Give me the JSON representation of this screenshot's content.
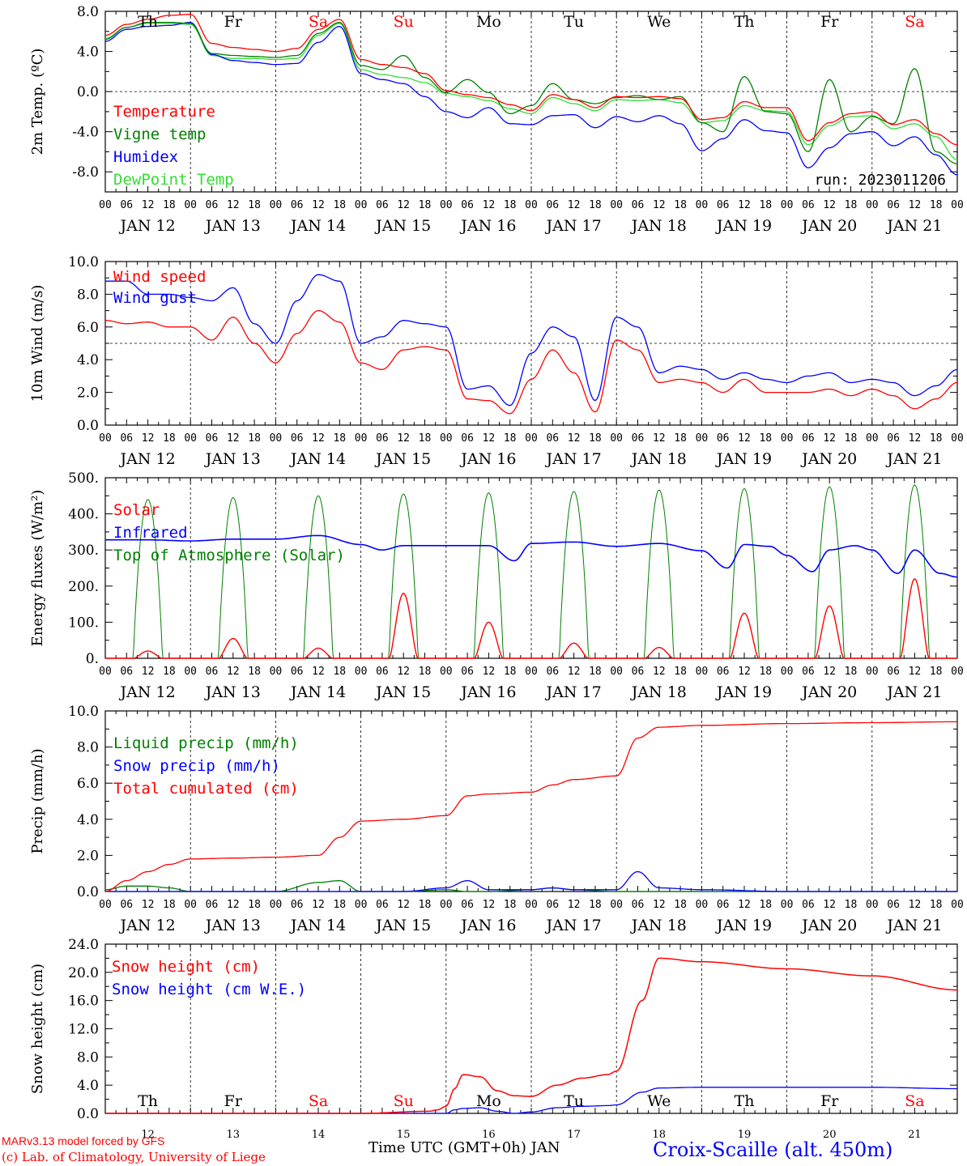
{
  "page": {
    "run_label": "run: 2023011206",
    "hour_labels": [
      "00",
      "06",
      "12",
      "18"
    ],
    "date_labels": [
      "JAN 12",
      "JAN 13",
      "JAN 14",
      "JAN 15",
      "JAN 16",
      "JAN 17",
      "JAN 18",
      "JAN 19",
      "JAN 20",
      "JAN 21"
    ],
    "last_hour_label": "00",
    "day_names": [
      "Th",
      "Fr",
      "Sa",
      "Su",
      "Mo",
      "Tu",
      "We",
      "Th",
      "Fr",
      "Sa"
    ],
    "day_colors": [
      "#000000",
      "#000000",
      "#ff0000",
      "#ff0000",
      "#000000",
      "#000000",
      "#000000",
      "#000000",
      "#000000",
      "#ff0000"
    ],
    "bottom_day_numbers": [
      "12",
      "13",
      "14",
      "15",
      "16",
      "17",
      "18",
      "19",
      "20",
      "21"
    ],
    "footer_model": "MARv3.13 model forced by GFS",
    "footer_lab": "(c) Lab. of Climatology, University of Liege",
    "footer_axis": "Time UTC (GMT+0h) JAN",
    "footer_station": "Croix-Scaille (alt. 450m)",
    "colors": {
      "red": "#ff0000",
      "green": "#008000",
      "blue": "#0000ff",
      "lightgreen": "#33dd33"
    }
  },
  "chart_data": [
    {
      "type": "line",
      "ylabel": "2m Temp. (ºC)",
      "ylim": [
        -10,
        8
      ],
      "yticks": [
        8,
        4,
        0,
        -4,
        -8
      ],
      "ytick_labels": [
        "8.0",
        "4.0",
        "0.0",
        "-4.0",
        "-8.0"
      ],
      "ref_line": 0,
      "x_unit": "days since JAN 12 00 UTC",
      "x": [
        0,
        0.25,
        0.5,
        0.75,
        1,
        1.25,
        1.5,
        1.75,
        2,
        2.25,
        2.5,
        2.75,
        3,
        3.25,
        3.5,
        3.75,
        4,
        4.25,
        4.5,
        4.75,
        5,
        5.25,
        5.5,
        5.75,
        6,
        6.25,
        6.5,
        6.75,
        7,
        7.25,
        7.5,
        7.75,
        8,
        8.25,
        8.5,
        8.75,
        9,
        9.25,
        9.5,
        9.75,
        10
      ],
      "series": [
        {
          "name": "Temperature",
          "color": "#ff0000",
          "values": [
            5.6,
            6.7,
            7.2,
            7.6,
            7.7,
            4.8,
            4.4,
            4.2,
            4.0,
            4.3,
            6.2,
            7.2,
            3.2,
            2.7,
            2.4,
            1.8,
            0.1,
            -0.3,
            -0.6,
            -1.3,
            -1.9,
            -0.3,
            -0.8,
            -1.6,
            -0.5,
            -0.6,
            -0.5,
            -0.7,
            -2.8,
            -2.6,
            -1.0,
            -1.6,
            -1.6,
            -4.9,
            -3.1,
            -2.2,
            -2.0,
            -3.3,
            -2.8,
            -4.2,
            -5.3
          ]
        },
        {
          "name": "Vigne temp",
          "color": "#008000",
          "values": [
            5.2,
            6.4,
            6.9,
            6.9,
            6.8,
            3.8,
            3.6,
            3.5,
            3.4,
            3.6,
            5.8,
            6.9,
            2.6,
            2.2,
            3.6,
            1.4,
            -0.1,
            1.2,
            -0.1,
            -2.2,
            -1.4,
            0.8,
            -0.8,
            -1.2,
            -0.6,
            -0.4,
            -0.8,
            -0.5,
            -3.1,
            -4.0,
            1.5,
            -2.0,
            -2.2,
            -6.0,
            1.2,
            -4.0,
            -2.5,
            -3.2,
            2.3,
            -6.0,
            -7.2
          ]
        },
        {
          "name": "Humidex",
          "color": "#0000ff",
          "values": [
            5.0,
            6.2,
            6.5,
            6.6,
            6.9,
            3.7,
            3.1,
            2.9,
            2.7,
            2.8,
            4.9,
            6.5,
            1.8,
            1.2,
            0.8,
            -0.5,
            -2.0,
            -2.6,
            -1.6,
            -3.2,
            -3.3,
            -2.4,
            -2.3,
            -3.6,
            -2.5,
            -3.0,
            -2.4,
            -3.2,
            -5.9,
            -4.7,
            -2.8,
            -3.9,
            -4.1,
            -7.6,
            -5.6,
            -4.2,
            -4.0,
            -5.4,
            -4.5,
            -6.3,
            -8.3
          ]
        },
        {
          "name": "DewPoint Temp",
          "color": "#33dd33",
          "values": [
            5.3,
            6.4,
            6.8,
            6.8,
            6.7,
            3.6,
            3.3,
            3.3,
            3.2,
            3.3,
            5.6,
            6.8,
            2.2,
            1.7,
            1.4,
            0.9,
            -0.2,
            -0.5,
            -0.9,
            -1.7,
            -2.2,
            -0.6,
            -1.2,
            -1.9,
            -0.8,
            -0.9,
            -0.8,
            -1.1,
            -3.1,
            -2.9,
            -1.4,
            -1.9,
            -2.0,
            -5.3,
            -3.4,
            -2.5,
            -2.4,
            -3.7,
            -3.2,
            -4.5,
            -6.8
          ]
        }
      ]
    },
    {
      "type": "line",
      "ylabel": "10m Wind (m/s)",
      "ylim": [
        0,
        10
      ],
      "yticks": [
        10,
        8,
        6,
        4,
        2,
        0
      ],
      "ytick_labels": [
        "10.0",
        "8.0",
        "6.0",
        "4.0",
        "2.0",
        "0.0"
      ],
      "ref_line": 5,
      "x_unit": "days since JAN 12 00 UTC",
      "x": [
        0,
        0.25,
        0.5,
        0.75,
        1,
        1.25,
        1.5,
        1.75,
        2,
        2.25,
        2.5,
        2.75,
        3,
        3.25,
        3.5,
        3.75,
        4,
        4.25,
        4.5,
        4.75,
        5,
        5.25,
        5.5,
        5.75,
        6,
        6.25,
        6.5,
        6.75,
        7,
        7.25,
        7.5,
        7.75,
        8,
        8.25,
        8.5,
        8.75,
        9,
        9.25,
        9.5,
        9.75,
        10
      ],
      "series": [
        {
          "name": "Wind speed",
          "color": "#ff0000",
          "values": [
            6.4,
            6.2,
            6.3,
            6.0,
            6.0,
            5.2,
            6.6,
            5.0,
            3.8,
            5.6,
            7.0,
            6.3,
            3.8,
            3.4,
            4.6,
            4.8,
            4.6,
            1.6,
            1.5,
            0.7,
            2.8,
            4.6,
            3.2,
            0.8,
            5.2,
            4.6,
            2.6,
            2.8,
            2.6,
            2.0,
            2.8,
            2.0,
            2.0,
            2.0,
            2.2,
            1.8,
            2.2,
            1.8,
            1.0,
            1.6,
            2.6
          ]
        },
        {
          "name": "Wind gust",
          "color": "#0000ff",
          "values": [
            8.8,
            8.8,
            8.0,
            8.0,
            7.8,
            7.6,
            8.4,
            6.2,
            5.0,
            7.6,
            9.2,
            8.8,
            5.0,
            5.4,
            6.4,
            6.2,
            6.0,
            2.2,
            2.4,
            1.2,
            4.4,
            6.0,
            5.4,
            1.5,
            6.6,
            6.0,
            3.2,
            3.6,
            3.4,
            2.8,
            3.2,
            2.8,
            2.6,
            3.0,
            3.2,
            2.6,
            2.8,
            2.6,
            1.8,
            2.4,
            3.4
          ]
        }
      ]
    },
    {
      "type": "line",
      "ylabel": "Energy fluxes (W/m²)",
      "ylim": [
        0,
        500
      ],
      "yticks": [
        500,
        400,
        300,
        200,
        100,
        0
      ],
      "ytick_labels": [
        "500.",
        "400.",
        "300.",
        "200.",
        "100.",
        "0."
      ],
      "x_unit": "days since JAN 12 00 UTC",
      "solar_peaks": [
        20,
        55,
        28,
        180,
        100,
        42,
        30,
        125,
        145,
        220
      ],
      "toa_peaks": [
        440,
        445,
        450,
        455,
        458,
        462,
        466,
        470,
        475,
        480
      ],
      "infrared_x": [
        0,
        0.5,
        1,
        1.5,
        2,
        2.5,
        3,
        3.25,
        3.5,
        4,
        4.5,
        4.8,
        5,
        5.5,
        6,
        6.5,
        7,
        7.3,
        7.5,
        7.8,
        8,
        8.3,
        8.5,
        8.8,
        9,
        9.3,
        9.5,
        9.8,
        10
      ],
      "infrared_values": [
        328,
        328,
        325,
        330,
        330,
        340,
        315,
        300,
        312,
        312,
        312,
        270,
        318,
        322,
        310,
        318,
        298,
        250,
        315,
        310,
        285,
        240,
        300,
        312,
        300,
        235,
        300,
        235,
        225
      ],
      "series": [
        {
          "name": "Solar",
          "color": "#ff0000"
        },
        {
          "name": "Infrared",
          "color": "#0000ff"
        },
        {
          "name": "Top of Atmosphere (Solar)",
          "color": "#008000"
        }
      ]
    },
    {
      "type": "line",
      "ylabel": "Precip (mm/h)",
      "ylim": [
        0,
        10
      ],
      "yticks": [
        10,
        8,
        6,
        4,
        2,
        0
      ],
      "ytick_labels": [
        "10.0",
        "8.0",
        "6.0",
        "4.0",
        "2.0",
        "0.0"
      ],
      "x_unit": "days since JAN 12 00 UTC",
      "x": [
        0,
        0.25,
        0.5,
        0.75,
        1,
        1.5,
        2,
        2.5,
        2.75,
        3,
        3.5,
        4,
        4.25,
        4.5,
        5,
        5.25,
        5.5,
        6,
        6.25,
        6.5,
        7,
        8,
        9,
        10
      ],
      "series": [
        {
          "name": "Liquid precip (mm/h)",
          "color": "#008000",
          "values": [
            0.1,
            0.3,
            0.3,
            0.2,
            0.0,
            0.0,
            0.0,
            0.5,
            0.6,
            0.0,
            0.0,
            0.1,
            0.0,
            0.0,
            0.1,
            0.2,
            0.1,
            0.0,
            0.0,
            0.0,
            0.0,
            0.0,
            0.0,
            0.0
          ]
        },
        {
          "name": "Snow precip (mm/h)",
          "color": "#0000ff",
          "values": [
            0.0,
            0.0,
            0.0,
            0.0,
            0.0,
            0.0,
            0.0,
            0.0,
            0.0,
            0.0,
            0.0,
            0.2,
            0.6,
            0.1,
            0.1,
            0.2,
            0.1,
            0.1,
            1.1,
            0.2,
            0.1,
            0.0,
            0.0,
            0.0
          ]
        },
        {
          "name": "Total cumulated (cm)",
          "color": "#ff0000",
          "values": [
            0.0,
            0.6,
            1.1,
            1.5,
            1.8,
            1.85,
            1.9,
            2.0,
            3.0,
            3.9,
            4.0,
            4.2,
            5.3,
            5.4,
            5.5,
            5.9,
            6.2,
            6.4,
            8.5,
            9.1,
            9.2,
            9.3,
            9.35,
            9.4
          ]
        }
      ]
    },
    {
      "type": "line",
      "ylabel": "Snow height (cm)",
      "ylim": [
        0,
        24
      ],
      "yticks": [
        24,
        20,
        16,
        12,
        8,
        4,
        0
      ],
      "ytick_labels": [
        "24.0",
        "20.0",
        "16.0",
        "12.0",
        "8.0",
        "4.0",
        "0.0"
      ],
      "x_unit": "days since JAN 12 00 UTC",
      "x": [
        0,
        1,
        2,
        3,
        3.8,
        3.9,
        4.0,
        4.1,
        4.2,
        4.4,
        4.6,
        4.8,
        5.0,
        5.3,
        5.6,
        5.9,
        6.0,
        6.3,
        6.5,
        7,
        8,
        9,
        10
      ],
      "series": [
        {
          "name": "Snow height (cm)",
          "color": "#ff0000",
          "values": [
            0,
            0,
            0,
            0,
            0.3,
            0.5,
            1.0,
            3.5,
            5.5,
            5.2,
            3.2,
            2.5,
            2.4,
            4.0,
            5.0,
            5.5,
            6.0,
            16.0,
            22.0,
            21.5,
            20.5,
            19.5,
            17.5
          ]
        },
        {
          "name": "Snow height (cm W.E.)",
          "color": "#0000ff",
          "values": [
            0,
            0,
            0,
            0,
            0,
            0,
            0,
            0.5,
            0.7,
            0.8,
            0.3,
            0,
            0.2,
            0.8,
            1.0,
            1.1,
            1.2,
            3.0,
            3.6,
            3.7,
            3.7,
            3.7,
            3.5
          ]
        }
      ]
    }
  ]
}
